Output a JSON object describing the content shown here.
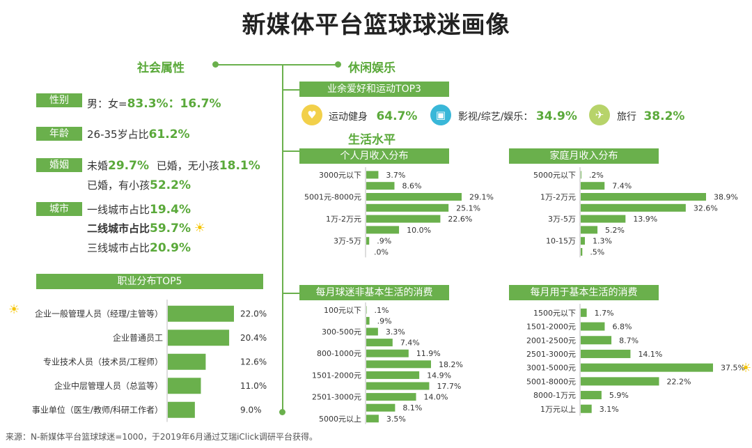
{
  "title": "新媒体平台篮球球迷画像",
  "sections": {
    "social": "社会属性",
    "leisure": "休闲娱乐",
    "living": "生活水平"
  },
  "social": {
    "gender_label": "性别",
    "gender_text": "男：女=",
    "gender_value": "83.3%：16.7%",
    "age_label": "年龄",
    "age_text": "26-35岁占比",
    "age_value": "61.2%",
    "marriage_label": "婚姻",
    "m1_text": "未婚",
    "m1_value": "29.7%",
    "m2_text": "已婚，无小孩",
    "m2_value": "18.1%",
    "m3_text": "已婚，有小孩",
    "m3_value": "52.2%",
    "city_label": "城市",
    "c1_text": "一线城市占比",
    "c1_value": "19.4%",
    "c2_text": "二线城市占比",
    "c2_value": "59.7%",
    "c3_text": "三线城市占比",
    "c3_value": "20.9%"
  },
  "hobby": {
    "header": "业余爱好和运动TOP3",
    "items": [
      {
        "label": "运动健身",
        "value": "64.7%",
        "icon": "fitness-icon",
        "color": "#f2d04a"
      },
      {
        "label": "影视/综艺/娱乐：",
        "value": "34.9%",
        "icon": "tv-icon",
        "color": "#39b7d8"
      },
      {
        "label": "旅行",
        "value": "38.2%",
        "icon": "travel-icon",
        "color": "#b7d36a"
      }
    ]
  },
  "icons": {
    "sun": "sun-icon",
    "sun_glyph": "☀"
  },
  "colors": {
    "accent": "#6ab04c",
    "bar": "#6ab04c",
    "header": "#6ab04c",
    "value_green": "#5aa93a"
  },
  "source": "来源：N-新媒体平台篮球球迷=1000，于2019年6月通过艾瑞iClick调研平台获得。",
  "chart_data": [
    {
      "id": "occupation",
      "type": "bar",
      "orientation": "horizontal",
      "title": "职业分布TOP5",
      "categories": [
        "企业一般管理人员（经理/主管等）",
        "企业普通员工",
        "专业技术人员（技术员/工程师）",
        "企业中层管理人员（总监等）",
        "事业单位（医生/教师/科研工作者）"
      ],
      "values": [
        22.0,
        20.4,
        12.6,
        11.0,
        9.0
      ],
      "labels": [
        "22.0%",
        "20.4%",
        "12.6%",
        "11.0%",
        "9.0%"
      ],
      "xlim": [
        0,
        22
      ]
    },
    {
      "id": "personal_income",
      "type": "bar",
      "orientation": "horizontal",
      "title": "个人月收入分布",
      "categories": [
        "3000元以下",
        "",
        "5001元-8000元",
        "",
        "1万-2万元",
        "",
        "3万-5万",
        ""
      ],
      "values": [
        3.7,
        8.6,
        29.1,
        25.1,
        22.6,
        10.0,
        0.9,
        0.0
      ],
      "labels": [
        "3.7%",
        "8.6%",
        "29.1%",
        "25.1%",
        "22.6%",
        "10.0%",
        ".9%",
        ".0%"
      ],
      "xlim": [
        0,
        29.1
      ]
    },
    {
      "id": "household_income",
      "type": "bar",
      "orientation": "horizontal",
      "title": "家庭月收入分布",
      "categories": [
        "5000元以下",
        "",
        "1万-2万元",
        "",
        "3万-5万",
        "",
        "10-15万",
        ""
      ],
      "values": [
        0.2,
        7.4,
        38.9,
        32.6,
        13.9,
        5.2,
        1.3,
        0.5
      ],
      "labels": [
        ".2%",
        "7.4%",
        "38.9%",
        "32.6%",
        "13.9%",
        "5.2%",
        "1.3%",
        ".5%"
      ],
      "xlim": [
        0,
        38.9
      ]
    },
    {
      "id": "non_basic_spending",
      "type": "bar",
      "orientation": "horizontal",
      "title": "每月球迷非基本生活的消费",
      "categories": [
        "100元以下",
        "",
        "300-500元",
        "",
        "800-1000元",
        "",
        "1501-2000元",
        "",
        "2501-3000元",
        "",
        "5000元以上"
      ],
      "values": [
        0.1,
        0.9,
        3.3,
        7.4,
        11.9,
        18.2,
        14.9,
        17.7,
        14.0,
        8.1,
        3.5
      ],
      "labels": [
        ".1%",
        ".9%",
        "3.3%",
        "7.4%",
        "11.9%",
        "18.2%",
        "14.9%",
        "17.7%",
        "14.0%",
        "8.1%",
        "3.5%"
      ],
      "xlim": [
        0,
        18.2
      ]
    },
    {
      "id": "basic_spending",
      "type": "bar",
      "orientation": "horizontal",
      "title": "每月用于基本生活的消费",
      "categories": [
        "1500元以下",
        "1501-2000元",
        "2001-2500元",
        "2501-3000元",
        "3001-5000元",
        "5001-8000元",
        "8000-1万元",
        "1万元以上"
      ],
      "values": [
        1.7,
        6.8,
        8.7,
        14.1,
        37.5,
        22.2,
        5.9,
        3.1
      ],
      "labels": [
        "1.7%",
        "6.8%",
        "8.7%",
        "14.1%",
        "37.5%",
        "22.2%",
        "5.9%",
        "3.1%"
      ],
      "xlim": [
        0,
        37.5
      ]
    }
  ]
}
